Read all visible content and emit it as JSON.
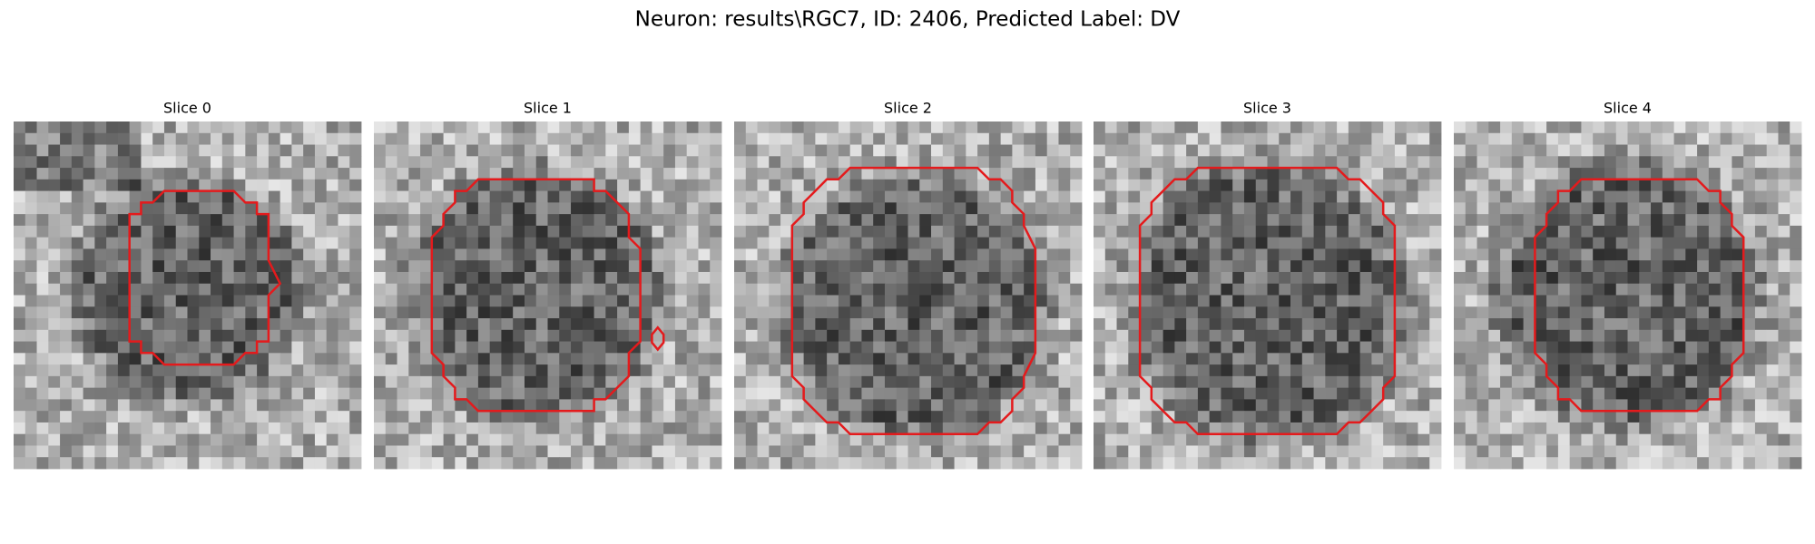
{
  "header": {
    "title": "Neuron: results\\RGC7, ID: 2406, Predicted Label: DV"
  },
  "panels": [
    {
      "title": "Slice 0"
    },
    {
      "title": "Slice 1"
    },
    {
      "title": "Slice 2"
    },
    {
      "title": "Slice 3"
    },
    {
      "title": "Slice 4"
    }
  ]
}
